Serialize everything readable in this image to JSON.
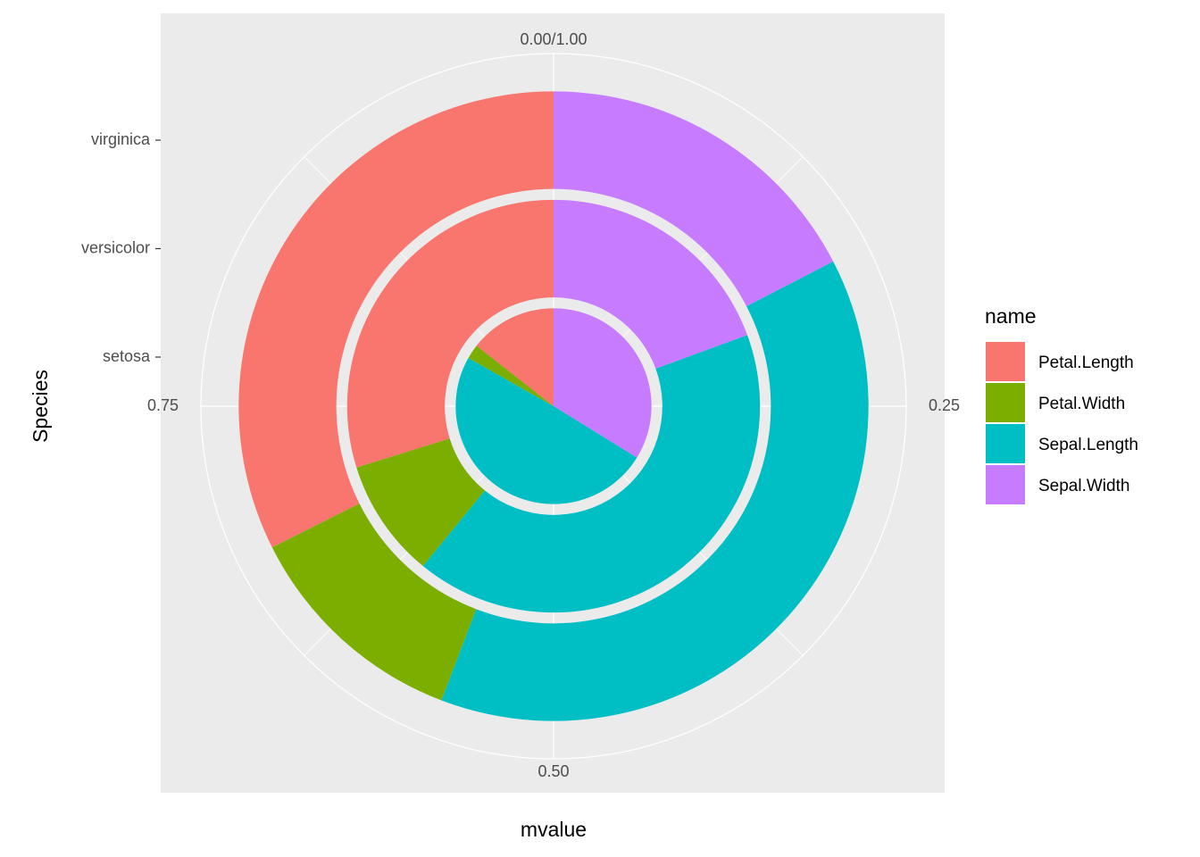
{
  "chart_data": {
    "type": "polar_bar",
    "x_label": "mvalue",
    "y_label": "Species",
    "categories": [
      "setosa",
      "versicolor",
      "virginica"
    ],
    "series": [
      {
        "name": "Petal.Length",
        "color": "#f8766d",
        "values": [
          0.144,
          0.298,
          0.324
        ]
      },
      {
        "name": "Petal.Width",
        "color": "#7cae00",
        "values": [
          0.024,
          0.093,
          0.118
        ]
      },
      {
        "name": "Sepal.Length",
        "color": "#00bfc4",
        "values": [
          0.494,
          0.415,
          0.384
        ]
      },
      {
        "name": "Sepal.Width",
        "color": "#c77cff",
        "values": [
          0.338,
          0.194,
          0.174
        ]
      }
    ],
    "xlim": [
      0,
      1
    ],
    "xticks": [
      {
        "value": 0,
        "label": "0.00/1.00"
      },
      0.25,
      {
        "value": 0.5,
        "label": "0.50"
      },
      0.75
    ],
    "legend_title": "name",
    "legend_position": "right",
    "grid": true
  }
}
